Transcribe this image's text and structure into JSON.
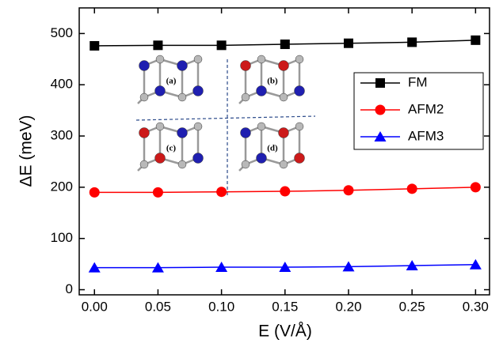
{
  "chart_data": {
    "type": "line",
    "x_label": "E (V/Å)",
    "y_label": "ΔE (meV)",
    "x": [
      0,
      0.05,
      0.1,
      0.15,
      0.2,
      0.25,
      0.3
    ],
    "series": [
      {
        "name": "FM",
        "color": "#000000",
        "marker": "square",
        "values": [
          476,
          477,
          477,
          479,
          481,
          483,
          487
        ]
      },
      {
        "name": "AFM2",
        "color": "#ff0000",
        "marker": "circle",
        "values": [
          190,
          190,
          191,
          192,
          194,
          197,
          200
        ]
      },
      {
        "name": "AFM3",
        "color": "#0000ff",
        "marker": "triangle",
        "values": [
          43,
          43,
          44,
          44,
          45,
          47,
          49
        ]
      }
    ],
    "xlim": [
      -0.012,
      0.311
    ],
    "ylim": [
      -10,
      550
    ],
    "xticks": [
      {
        "value": 0,
        "label": "0.00"
      },
      {
        "value": 0.05,
        "label": "0.05"
      },
      {
        "value": 0.1,
        "label": "0.10"
      },
      {
        "value": 0.15,
        "label": "0.15"
      },
      {
        "value": 0.2,
        "label": "0.20"
      },
      {
        "value": 0.25,
        "label": "0.25"
      },
      {
        "value": 0.3,
        "label": "0.30"
      }
    ],
    "yticks": [
      0,
      100,
      200,
      300,
      400,
      500
    ],
    "legend": "upper right",
    "inset_labels": [
      "(a)",
      "(b)",
      "(c)",
      "(d)"
    ]
  }
}
